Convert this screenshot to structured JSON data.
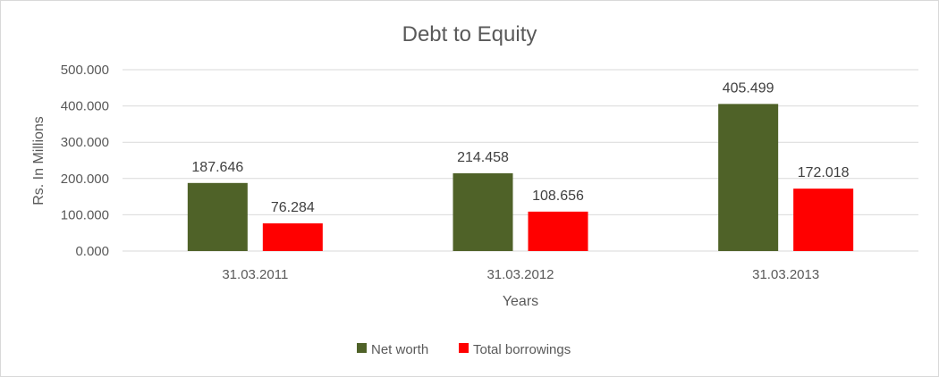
{
  "chart_data": {
    "type": "bar",
    "title": "Debt to Equity",
    "xlabel": "Years",
    "ylabel": "Rs. In Millions",
    "categories": [
      "31.03.2011",
      "31.03.2012",
      "31.03.2013"
    ],
    "series": [
      {
        "name": "Net worth",
        "color": "#4f6228",
        "values": [
          187.646,
          214.458,
          405.499
        ],
        "labels": [
          "187.646",
          "214.458",
          "405.499"
        ]
      },
      {
        "name": "Total borrowings",
        "color": "#ff0000",
        "values": [
          76.284,
          108.656,
          172.018
        ],
        "labels": [
          "76.284",
          "108.656",
          "172.018"
        ]
      }
    ],
    "y_ticks": [
      "0.000",
      "100.000",
      "200.000",
      "300.000",
      "400.000",
      "500.000"
    ],
    "ylim": [
      0,
      500
    ],
    "grid": true,
    "legend_position": "bottom"
  }
}
